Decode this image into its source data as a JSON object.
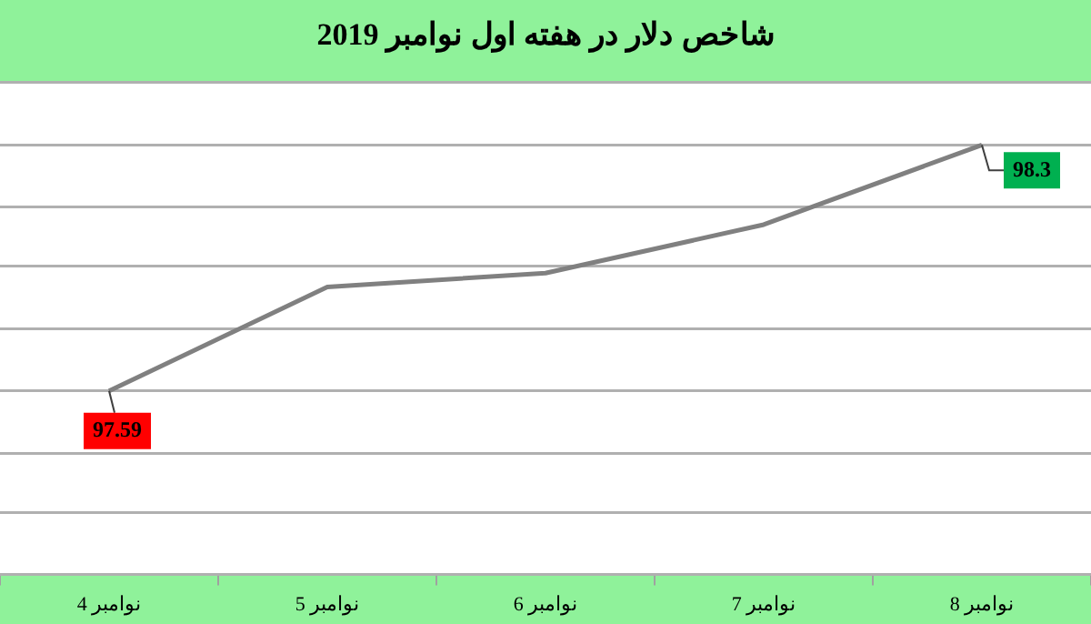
{
  "chart_data": {
    "type": "line",
    "title": "شاخص دلار در هفته اول نوامبر 2019",
    "categories": [
      "4 نوامبر",
      "5 نوامبر",
      "6 نوامبر",
      "7 نوامبر",
      "8 نوامبر"
    ],
    "series": [
      {
        "color": "#808080",
        "values": [
          97.59,
          97.89,
          97.93,
          98.07,
          98.3
        ],
        "value_labels": [
          "97.59",
          null,
          null,
          null,
          "98.3"
        ]
      }
    ],
    "ylim": [
      97.06,
      98.48
    ],
    "yticks": [
      {
        "value": 97.06,
        "label": null
      },
      {
        "value": 97.24,
        "label": null
      },
      {
        "value": 97.41,
        "label": null
      },
      {
        "value": 97.59,
        "label": null
      },
      {
        "value": 97.77,
        "label": null
      },
      {
        "value": 97.95,
        "label": null
      },
      {
        "value": 98.12,
        "label": null
      },
      {
        "value": 98.3,
        "label": null
      },
      {
        "value": 98.48,
        "label": null
      }
    ],
    "grid": "y",
    "marker": "none",
    "line_style": "solid",
    "legend": false,
    "tick_labels": "x"
  }
}
